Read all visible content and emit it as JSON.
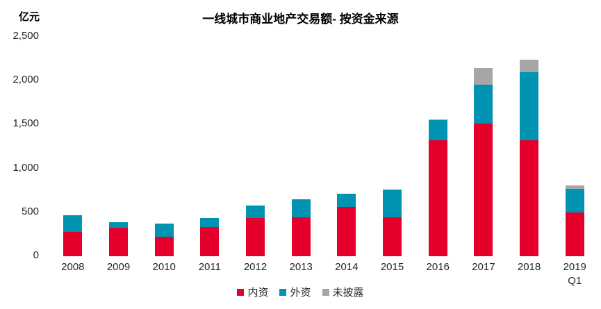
{
  "chart": {
    "title": "一线城市商业地产交易额- 按资金来源",
    "unit": "亿元"
  },
  "chart_data": {
    "type": "bar",
    "stacked": true,
    "title": "一线城市商业地产交易额- 按资金来源",
    "ylabel": "亿元",
    "xlabel": "",
    "ylim": [
      0,
      2500
    ],
    "ytick_values": [
      0,
      500,
      1000,
      1500,
      2000,
      2500
    ],
    "ytick_labels": [
      "0",
      "500",
      "1,000",
      "1,500",
      "2,000",
      "2,500"
    ],
    "grid": false,
    "legend_position": "bottom",
    "categories": [
      "2008",
      "2009",
      "2010",
      "2011",
      "2012",
      "2013",
      "2014",
      "2015",
      "2016",
      "2017",
      "2018",
      "2019 Q1"
    ],
    "x_labels": [
      "2008",
      "2009",
      "2010",
      "2011",
      "2012",
      "2013",
      "2014",
      "2015",
      "2016",
      "2017",
      "2018",
      "2019\nQ1"
    ],
    "series": [
      {
        "name": "内资",
        "key": "domestic",
        "color": "#E4002B",
        "values": [
          275,
          325,
          220,
          335,
          435,
          440,
          560,
          445,
          1320,
          1515,
          1320,
          500
        ]
      },
      {
        "name": "外资",
        "key": "foreign",
        "color": "#0093B2",
        "values": [
          195,
          60,
          155,
          100,
          145,
          210,
          150,
          315,
          230,
          440,
          780,
          270
        ]
      },
      {
        "name": "未披露",
        "key": "undisclosed",
        "color": "#A5A6A8",
        "values": [
          0,
          0,
          0,
          0,
          0,
          0,
          0,
          0,
          10,
          190,
          140,
          40
        ]
      }
    ]
  }
}
